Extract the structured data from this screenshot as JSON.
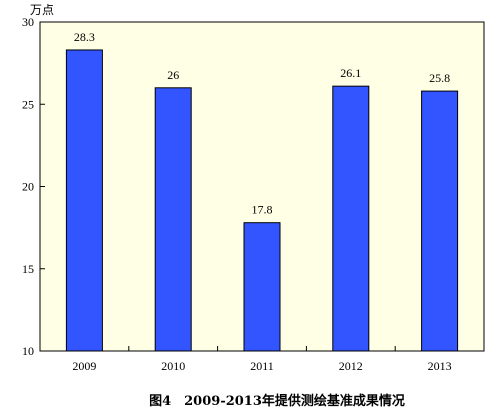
{
  "chart_data": {
    "type": "bar",
    "unit_label": "万点",
    "caption": "图4　2009-2013年提供测绘基准成果情况",
    "categories": [
      "2009",
      "2010",
      "2011",
      "2012",
      "2013"
    ],
    "values": [
      28.3,
      26,
      17.8,
      26.1,
      25.8
    ],
    "value_labels": [
      "28.3",
      "26",
      "17.8",
      "26.1",
      "25.8"
    ],
    "ylim": [
      10,
      30
    ],
    "yticks": [
      "10",
      "15",
      "20",
      "25",
      "30"
    ],
    "ytick_values": [
      10,
      15,
      20,
      25,
      30
    ],
    "grid": false,
    "colors": {
      "bar": "#3355ff",
      "plot_background": "#ffffe5",
      "axis": "#000000"
    }
  }
}
